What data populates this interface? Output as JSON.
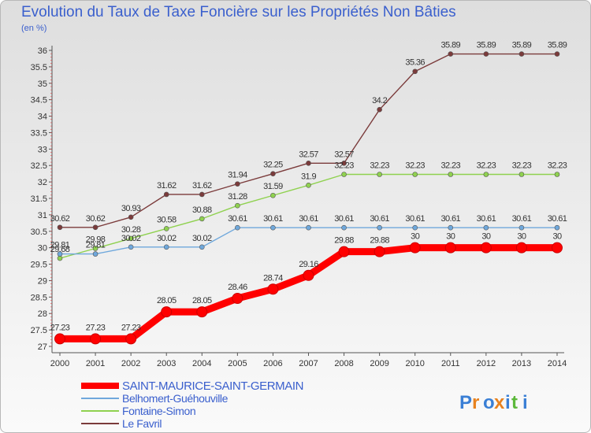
{
  "title": "Evolution du Taux de Taxe Foncière sur les Propriétés Non Bâties",
  "unit_label": "(en %)",
  "logo_text": "Proxiti",
  "chart_data": {
    "type": "line",
    "title": "Evolution du Taux de Taxe Foncière sur les Propriétés Non Bâties",
    "ylabel": "(en %)",
    "xlabel": "",
    "x": [
      "2000",
      "2001",
      "2002",
      "2003",
      "2004",
      "2005",
      "2006",
      "2007",
      "2008",
      "2009",
      "2010",
      "2011",
      "2012",
      "2013",
      "2014"
    ],
    "ylim": [
      27,
      36
    ],
    "yticks": [
      "27",
      "27.5",
      "28",
      "28.5",
      "29",
      "29.5",
      "30",
      "30.5",
      "31",
      "31.5",
      "32",
      "32.5",
      "33",
      "33.5",
      "34",
      "34.5",
      "35",
      "35.5",
      "36"
    ],
    "grid": false,
    "legend_position": "bottom-left",
    "series": [
      {
        "name": "SAINT-MAURICE-SAINT-GERMAIN",
        "color": "#ff0000",
        "values": [
          27.23,
          27.23,
          27.23,
          28.05,
          28.05,
          28.46,
          28.74,
          29.16,
          29.88,
          29.88,
          30,
          30,
          30,
          30,
          30
        ],
        "labels": [
          "27.23",
          "27.23",
          "27.23",
          "28.05",
          "28.05",
          "28.46",
          "28.74",
          "29.16",
          "29.88",
          "29.88",
          "30",
          "30",
          "30",
          "30",
          "30"
        ]
      },
      {
        "name": "Belhomert-Guéhouville",
        "color": "#6fa8dc",
        "values": [
          29.81,
          29.81,
          30.02,
          30.02,
          30.02,
          30.61,
          30.61,
          30.61,
          30.61,
          30.61,
          30.61,
          30.61,
          30.61,
          30.61,
          30.61
        ],
        "labels": [
          "29.81",
          "29.81",
          "30.02",
          "30.02",
          "30.02",
          "30.61",
          "30.61",
          "30.61",
          "30.61",
          "30.61",
          "30.61",
          "30.61",
          "30.61",
          "30.61",
          "30.61"
        ]
      },
      {
        "name": "Fontaine-Simon",
        "color": "#8fd14f",
        "values": [
          29.68,
          29.98,
          30.28,
          30.58,
          30.88,
          31.28,
          31.59,
          31.9,
          32.23,
          32.23,
          32.23,
          32.23,
          32.23,
          32.23,
          32.23
        ],
        "labels": [
          "29.68",
          "29.98",
          "30.28",
          "30.58",
          "30.88",
          "31.28",
          "31.59",
          "31.9",
          "32.23",
          "32.23",
          "32.23",
          "32.23",
          "32.23",
          "32.23",
          "32.23"
        ]
      },
      {
        "name": "Le Favril",
        "color": "#7b3b3b",
        "values": [
          30.62,
          30.62,
          30.93,
          31.62,
          31.62,
          31.94,
          32.25,
          32.57,
          32.57,
          34.2,
          35.36,
          35.89,
          35.89,
          35.89,
          35.89
        ],
        "labels": [
          "30.62",
          "30.62",
          "30.93",
          "31.62",
          "31.62",
          "31.94",
          "32.25",
          "32.57",
          "32.57",
          "34.2",
          "35.36",
          "35.89",
          "35.89",
          "35.89",
          "35.89"
        ]
      }
    ]
  }
}
